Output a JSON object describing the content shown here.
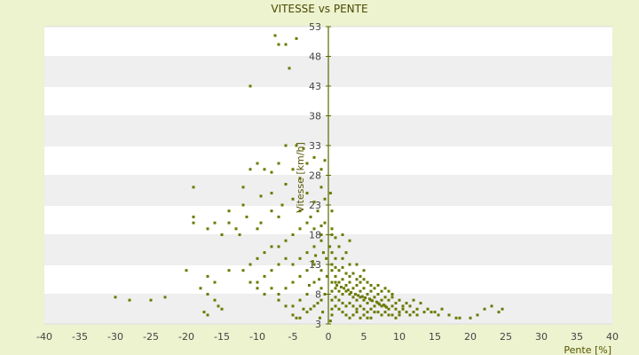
{
  "chart_data": {
    "type": "scatter",
    "title": "VITESSE vs PENTE",
    "xlabel": "Pente [%]",
    "ylabel": "Vitesse [km/h]",
    "xlim": [
      -40,
      40
    ],
    "ylim": [
      3,
      53
    ],
    "xticks": [
      "-40",
      "-35",
      "-30",
      "-25",
      "-20",
      "-15",
      "-10",
      "-5",
      "0",
      "5",
      "10",
      "15",
      "20",
      "25",
      "30",
      "35",
      "40"
    ],
    "yticks": [
      "3",
      "8",
      "13",
      "18",
      "23",
      "28",
      "33",
      "38",
      "43",
      "48",
      "53"
    ],
    "grid": "horizontal alternating bands",
    "colors": {
      "background": "#edf2cf",
      "plot_band_light": "#ffffff",
      "plot_band_dark": "#efefef",
      "marker": "#6b7a00",
      "axis": "#556b00"
    },
    "series": [
      {
        "points": [
          [
            -7.5,
            51.5
          ],
          [
            -7,
            50
          ],
          [
            -6,
            50
          ],
          [
            -4.5,
            51
          ],
          [
            -5.5,
            46
          ],
          [
            -11,
            43
          ],
          [
            -6,
            33
          ],
          [
            -4.5,
            33
          ],
          [
            -3.5,
            32.5
          ],
          [
            -2,
            31
          ],
          [
            -0.5,
            30.5
          ],
          [
            -1,
            29
          ],
          [
            -3,
            30
          ],
          [
            -5,
            29
          ],
          [
            -7,
            30
          ],
          [
            -8,
            28.5
          ],
          [
            -9,
            29
          ],
          [
            -10,
            30
          ],
          [
            -11,
            29
          ],
          [
            -12,
            26
          ],
          [
            -19,
            26
          ],
          [
            -4,
            27.5
          ],
          [
            -6,
            26.5
          ],
          [
            -8,
            25
          ],
          [
            -9.5,
            24.5
          ],
          [
            -12,
            23
          ],
          [
            -3,
            25
          ],
          [
            -5,
            24
          ],
          [
            -6.5,
            23
          ],
          [
            -2,
            23.5
          ],
          [
            -4,
            22
          ],
          [
            -7,
            21
          ],
          [
            -8,
            22
          ],
          [
            -9.5,
            20
          ],
          [
            -10,
            19
          ],
          [
            -11.5,
            21
          ],
          [
            -14,
            22
          ],
          [
            -16,
            20
          ],
          [
            -19,
            21
          ],
          [
            -19,
            20
          ],
          [
            -17,
            19
          ],
          [
            -15,
            18
          ],
          [
            -14,
            20
          ],
          [
            -13,
            19
          ],
          [
            -12.5,
            18
          ],
          [
            -3,
            20
          ],
          [
            -2,
            19
          ],
          [
            -1,
            18
          ],
          [
            -4,
            19
          ],
          [
            -5,
            18
          ],
          [
            -6,
            17
          ],
          [
            -7,
            16
          ],
          [
            -8,
            16
          ],
          [
            -9,
            15
          ],
          [
            -10,
            14
          ],
          [
            -11,
            13
          ],
          [
            -12,
            12
          ],
          [
            -14,
            12
          ],
          [
            -17,
            11
          ],
          [
            -16,
            10
          ],
          [
            -18,
            9
          ],
          [
            -20,
            12
          ],
          [
            -1,
            17
          ],
          [
            -2,
            16
          ],
          [
            -3,
            15
          ],
          [
            -4,
            14
          ],
          [
            -5,
            13
          ],
          [
            -6,
            14
          ],
          [
            -7,
            13
          ],
          [
            -8,
            12
          ],
          [
            -9,
            11
          ],
          [
            -10,
            10
          ],
          [
            -8,
            9
          ],
          [
            -9,
            8
          ],
          [
            -10,
            9
          ],
          [
            -11,
            10
          ],
          [
            -2,
            13
          ],
          [
            -1,
            12
          ],
          [
            -3,
            12
          ],
          [
            -4,
            11
          ],
          [
            -5,
            10
          ],
          [
            -6,
            9
          ],
          [
            -7,
            8
          ],
          [
            -2,
            10
          ],
          [
            -1,
            9
          ],
          [
            -3,
            8
          ],
          [
            -4,
            7
          ],
          [
            -5,
            6
          ],
          [
            -6,
            6
          ],
          [
            -7,
            7
          ],
          [
            -3,
            5
          ],
          [
            -4,
            4
          ],
          [
            -5,
            4.5
          ],
          [
            -3.5,
            5.5
          ],
          [
            -4.5,
            4
          ],
          [
            -17,
            4.5
          ],
          [
            -17.5,
            5
          ],
          [
            -15,
            5.5
          ],
          [
            -15.5,
            6
          ],
          [
            -16,
            7
          ],
          [
            -28,
            7
          ],
          [
            -30,
            7.5
          ],
          [
            -25,
            7
          ],
          [
            -23,
            7.5
          ],
          [
            -17,
            8
          ],
          [
            -1,
            26
          ],
          [
            -0.5,
            24
          ],
          [
            -1.5,
            22
          ],
          [
            -2.5,
            21
          ],
          [
            -0.5,
            20
          ],
          [
            -1,
            19.5
          ],
          [
            0.5,
            19
          ],
          [
            0.5,
            18
          ],
          [
            1,
            17.5
          ],
          [
            2,
            18
          ],
          [
            3,
            17
          ],
          [
            1.5,
            16
          ],
          [
            2.5,
            15
          ],
          [
            0.5,
            15
          ],
          [
            1,
            14
          ],
          [
            2,
            14
          ],
          [
            3,
            13
          ],
          [
            4,
            13
          ],
          [
            5,
            12
          ],
          [
            4.5,
            11
          ],
          [
            0.3,
            25
          ],
          [
            0.5,
            22
          ],
          [
            0.2,
            16
          ],
          [
            0.5,
            12
          ],
          [
            1,
            11
          ],
          [
            1.5,
            10
          ],
          [
            2,
            10.5
          ],
          [
            2.5,
            9.5
          ],
          [
            3,
            10
          ],
          [
            3.5,
            9
          ],
          [
            4,
            9.5
          ],
          [
            4.5,
            8.5
          ],
          [
            5,
            9
          ],
          [
            5.5,
            8
          ],
          [
            6,
            8.5
          ],
          [
            6.5,
            7.5
          ],
          [
            7,
            8
          ],
          [
            7.5,
            7
          ],
          [
            8,
            7.5
          ],
          [
            8.5,
            7
          ],
          [
            9,
            7.5
          ],
          [
            9.5,
            6.5
          ],
          [
            10,
            7
          ],
          [
            10.5,
            6
          ],
          [
            11,
            6.5
          ],
          [
            11.5,
            6
          ],
          [
            12,
            7
          ],
          [
            12.5,
            5.5
          ],
          [
            13,
            6.5
          ],
          [
            13.5,
            5
          ],
          [
            14,
            5.5
          ],
          [
            14.5,
            5
          ],
          [
            15,
            5
          ],
          [
            15.5,
            4.5
          ],
          [
            16,
            5.5
          ],
          [
            17,
            4.5
          ],
          [
            18,
            4
          ],
          [
            18.5,
            4
          ],
          [
            20,
            4
          ],
          [
            21,
            4.5
          ],
          [
            22,
            5.5
          ],
          [
            23,
            6
          ],
          [
            24,
            5
          ],
          [
            24.5,
            5.5
          ],
          [
            1,
            9
          ],
          [
            1.5,
            8.5
          ],
          [
            2,
            8
          ],
          [
            2.5,
            8.5
          ],
          [
            3,
            8
          ],
          [
            3.5,
            7.5
          ],
          [
            4,
            7
          ],
          [
            4.5,
            7.5
          ],
          [
            5,
            7
          ],
          [
            5.5,
            6.5
          ],
          [
            6,
            7
          ],
          [
            6.5,
            6
          ],
          [
            7,
            6.5
          ],
          [
            7.5,
            6
          ],
          [
            8,
            6
          ],
          [
            8.5,
            5.5
          ],
          [
            9,
            6
          ],
          [
            9.5,
            5.5
          ],
          [
            10,
            5
          ],
          [
            10.5,
            5.5
          ],
          [
            11,
            5
          ],
          [
            11.5,
            4.5
          ],
          [
            12,
            5
          ],
          [
            12.5,
            4.5
          ],
          [
            1,
            7.5
          ],
          [
            1.5,
            7
          ],
          [
            2,
            6.5
          ],
          [
            2.5,
            6
          ],
          [
            3,
            6.5
          ],
          [
            3.5,
            6
          ],
          [
            4,
            5.5
          ],
          [
            4.5,
            6
          ],
          [
            5,
            5.5
          ],
          [
            5.5,
            5
          ],
          [
            6,
            5.5
          ],
          [
            6.5,
            5
          ],
          [
            7,
            5
          ],
          [
            7.5,
            4.5
          ],
          [
            8,
            5
          ],
          [
            8.5,
            4.5
          ],
          [
            9,
            4.5
          ],
          [
            9.5,
            4
          ],
          [
            10,
            4.5
          ],
          [
            1,
            6
          ],
          [
            1.5,
            5.5
          ],
          [
            2,
            5
          ],
          [
            2.5,
            4.5
          ],
          [
            3,
            4
          ],
          [
            3.5,
            4.5
          ],
          [
            4,
            5
          ],
          [
            4.5,
            4
          ],
          [
            5,
            4.5
          ],
          [
            5.5,
            4
          ],
          [
            6,
            4
          ],
          [
            0.5,
            13
          ],
          [
            1,
            12.5
          ],
          [
            1.5,
            12
          ],
          [
            2,
            12.5
          ],
          [
            2.5,
            11.5
          ],
          [
            3,
            11
          ],
          [
            3.5,
            11.5
          ],
          [
            4,
            10.5
          ],
          [
            4.5,
            10
          ],
          [
            5,
            10.5
          ],
          [
            5.5,
            10
          ],
          [
            6,
            9.5
          ],
          [
            6.5,
            9
          ],
          [
            7,
            9.5
          ],
          [
            7.5,
            8.5
          ],
          [
            8,
            9
          ],
          [
            8.5,
            8.5
          ],
          [
            9,
            8
          ],
          [
            0.5,
            10
          ],
          [
            0.5,
            8.5
          ],
          [
            0.5,
            7
          ],
          [
            0.5,
            5.5
          ],
          [
            0.5,
            4.5
          ],
          [
            0.3,
            3.5
          ],
          [
            1,
            10
          ],
          [
            1.2,
            9.5
          ],
          [
            1.8,
            9.2
          ],
          [
            2.2,
            9
          ],
          [
            2.8,
            8.7
          ],
          [
            3.2,
            8.3
          ],
          [
            3.8,
            8
          ],
          [
            4.2,
            7.8
          ],
          [
            4.8,
            7.6
          ],
          [
            5.2,
            7.4
          ],
          [
            5.8,
            7.2
          ],
          [
            6.2,
            6.9
          ],
          [
            6.8,
            6.7
          ],
          [
            7.2,
            6.3
          ],
          [
            7.8,
            6.2
          ],
          [
            8.2,
            5.8
          ],
          [
            -0.5,
            8
          ],
          [
            -1,
            7
          ],
          [
            -1.5,
            6.5
          ],
          [
            -2,
            6
          ],
          [
            -0.8,
            5
          ],
          [
            -1.2,
            4
          ],
          [
            -2.5,
            5.5
          ],
          [
            -0.3,
            14
          ],
          [
            -0.7,
            15
          ],
          [
            -1.8,
            14.5
          ],
          [
            -2.2,
            13.5
          ],
          [
            -0.2,
            11
          ],
          [
            -1.3,
            10.5
          ],
          [
            -2.7,
            9.5
          ]
        ]
      }
    ]
  }
}
